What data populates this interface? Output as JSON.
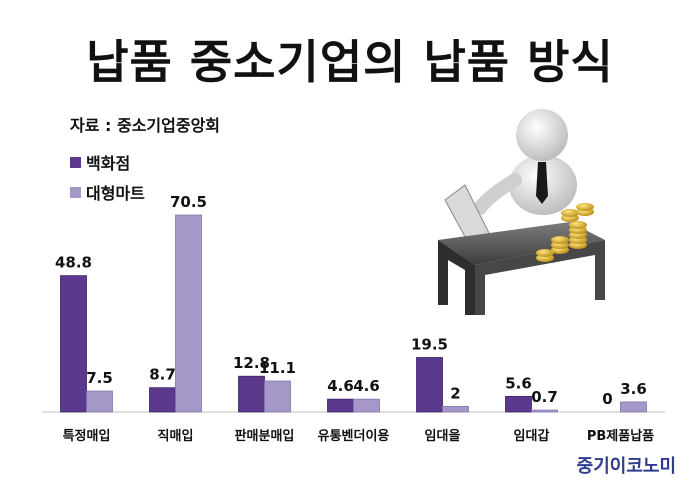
{
  "page_title": "납품 중소기업의 납품 방식",
  "source_text": "자료 : 중소기업중앙회",
  "brand_text": "중기이코노미",
  "chart_data": {
    "type": "bar",
    "title": "납품 중소기업의 납품 방식",
    "categories": [
      "특정매입",
      "직매입",
      "판매분매입",
      "유통벤더이용",
      "임대을",
      "임대갑",
      "PB제품납품"
    ],
    "series": [
      {
        "name": "백화점",
        "color": "#5b3a8e",
        "values": [
          48.8,
          8.7,
          12.8,
          4.6,
          19.5,
          5.6,
          0
        ]
      },
      {
        "name": "대형마트",
        "color": "#a697c9",
        "values": [
          7.5,
          70.5,
          11.1,
          4.6,
          2,
          0.7,
          3.6
        ]
      }
    ],
    "value_labels": [
      [
        "48.8",
        "8.7",
        "12.8",
        "4.6",
        "19.5",
        "5.6",
        "0"
      ],
      [
        "7.5",
        "70.5",
        "11.1",
        "4.6",
        "2",
        "0.7",
        "3.6"
      ]
    ],
    "legend_position": "top-left",
    "grid": false,
    "xlabel": "",
    "ylabel": "",
    "ylim": [
      0,
      70.5
    ]
  }
}
